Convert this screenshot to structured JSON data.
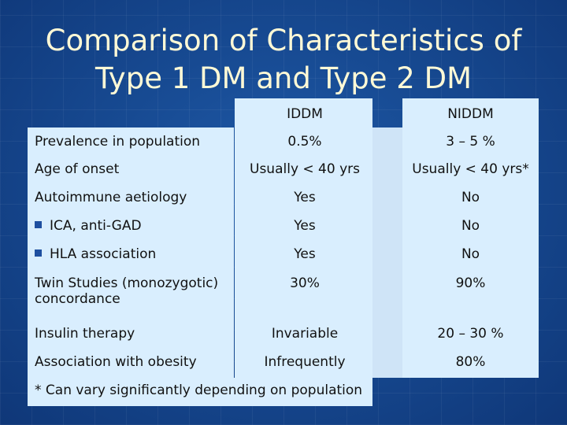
{
  "title": {
    "line1": "Comparison of Characteristics of",
    "line2": "Type 1 DM and Type 2 DM"
  },
  "table": {
    "headers": [
      "IDDM",
      "NIDDM"
    ],
    "rows": [
      {
        "label": "Prevalence in population",
        "iddm": "0.5%",
        "niddm": "3 – 5 %"
      },
      {
        "label": "Age of onset",
        "iddm": "Usually < 40 yrs",
        "niddm": "Usually < 40 yrs*"
      },
      {
        "label": "Autoimmune aetiology",
        "iddm": "Yes",
        "niddm": "No"
      },
      {
        "label": "ICA, anti-GAD",
        "iddm": "Yes",
        "niddm": "No",
        "bullet": true
      },
      {
        "label": "HLA association",
        "iddm": "Yes",
        "niddm": "No",
        "bullet": true
      },
      {
        "label": "Twin Studies (monozygotic) concordance",
        "iddm": "30%",
        "niddm": "90%"
      },
      {
        "label": "Insulin therapy",
        "iddm": "Invariable",
        "niddm": "20 – 30 %"
      },
      {
        "label": "Association with obesity",
        "iddm": "Infrequently",
        "niddm": "80%"
      }
    ]
  },
  "footnote": "* Can vary significantly depending on population",
  "colors": {
    "background": "#174a92",
    "title": "#fff9d6",
    "panel": "#d9eefe",
    "bullet": "#1e4fa0"
  }
}
